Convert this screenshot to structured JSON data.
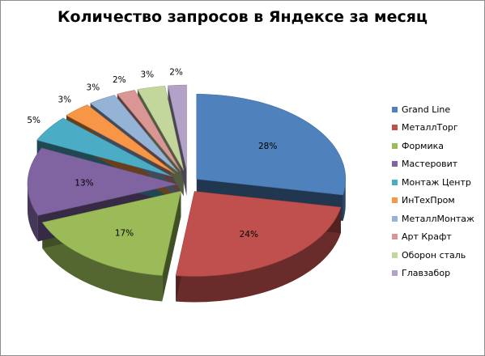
{
  "chart_data": {
    "type": "pie",
    "title": "Количество запросов в Яндексе за месяц",
    "three_d": true,
    "exploded": true,
    "legend_position": "right",
    "label_format": "percent",
    "slices": [
      {
        "name": "Grand Line",
        "value": 28,
        "label": "28%",
        "color": "#4f81bd"
      },
      {
        "name": "МеталлТорг",
        "value": 24,
        "label": "24%",
        "color": "#c0504d"
      },
      {
        "name": "Формика",
        "value": 17,
        "label": "17%",
        "color": "#9bbb59"
      },
      {
        "name": "Мастеровит",
        "value": 13,
        "label": "13%",
        "color": "#8064a2"
      },
      {
        "name": "Монтаж Центр",
        "value": 5,
        "label": "5%",
        "color": "#4bacc6"
      },
      {
        "name": "ИнТехПром",
        "value": 3,
        "label": "3%",
        "color": "#f79646"
      },
      {
        "name": "МеталлМонтаж",
        "value": 3,
        "label": "3%",
        "color": "#95b3d7"
      },
      {
        "name": "Арт Крафт",
        "value": 2,
        "label": "2%",
        "color": "#d99694"
      },
      {
        "name": "Оборон сталь",
        "value": 3,
        "label": "3%",
        "color": "#c3d69b"
      },
      {
        "name": "Главзабор",
        "value": 2,
        "label": "2%",
        "color": "#b3a2c7"
      }
    ]
  }
}
